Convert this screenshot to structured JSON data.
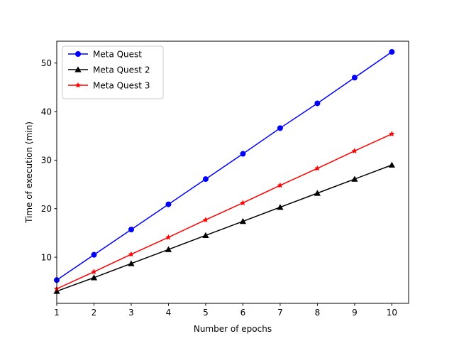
{
  "chart_data": {
    "type": "line",
    "title": "",
    "xlabel": "Number of epochs",
    "ylabel": "Time of execution (min)",
    "x": [
      1,
      2,
      3,
      4,
      5,
      6,
      7,
      8,
      9,
      10
    ],
    "xlim": [
      1,
      10.45
    ],
    "ylim": [
      0.5,
      54.5
    ],
    "xticks": [
      1,
      2,
      3,
      4,
      5,
      6,
      7,
      8,
      9,
      10
    ],
    "yticks": [
      10,
      20,
      30,
      40,
      50
    ],
    "grid": false,
    "legend_position": "top-left",
    "series": [
      {
        "name": "Meta Quest",
        "color": "#0000ff",
        "marker": "circle",
        "values": [
          5.3,
          10.5,
          15.7,
          20.9,
          26.1,
          31.3,
          36.6,
          41.7,
          47.0,
          52.3
        ]
      },
      {
        "name": "Meta Quest 2",
        "color": "#000000",
        "marker": "triangle",
        "values": [
          3.0,
          5.8,
          8.7,
          11.6,
          14.5,
          17.4,
          20.3,
          23.2,
          26.1,
          29.0
        ]
      },
      {
        "name": "Meta Quest 3",
        "color": "#ff0000",
        "marker": "star",
        "values": [
          3.5,
          7.0,
          10.6,
          14.1,
          17.7,
          21.2,
          24.8,
          28.3,
          31.9,
          35.4
        ]
      }
    ]
  }
}
